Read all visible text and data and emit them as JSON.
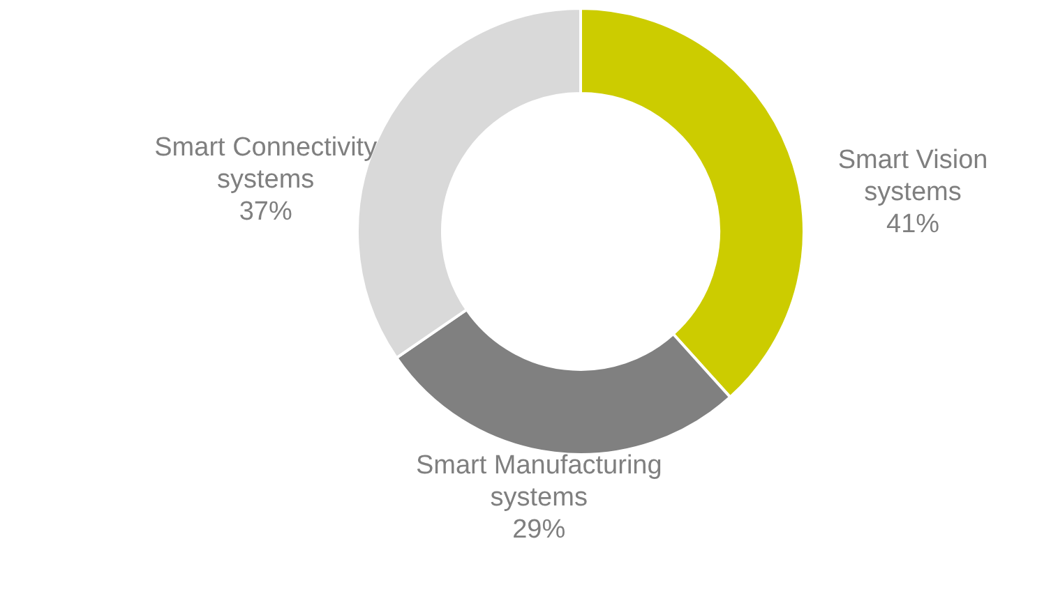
{
  "chart_data": {
    "type": "donut",
    "categories": [
      "Smart Vision systems",
      "Smart Manufacturing systems",
      "Smart Connectivity systems"
    ],
    "values": [
      41,
      29,
      37
    ],
    "colors": [
      "#cccc00",
      "#808080",
      "#d9d9d9"
    ],
    "value_labels": [
      "41%",
      "29%",
      "37%"
    ]
  }
}
